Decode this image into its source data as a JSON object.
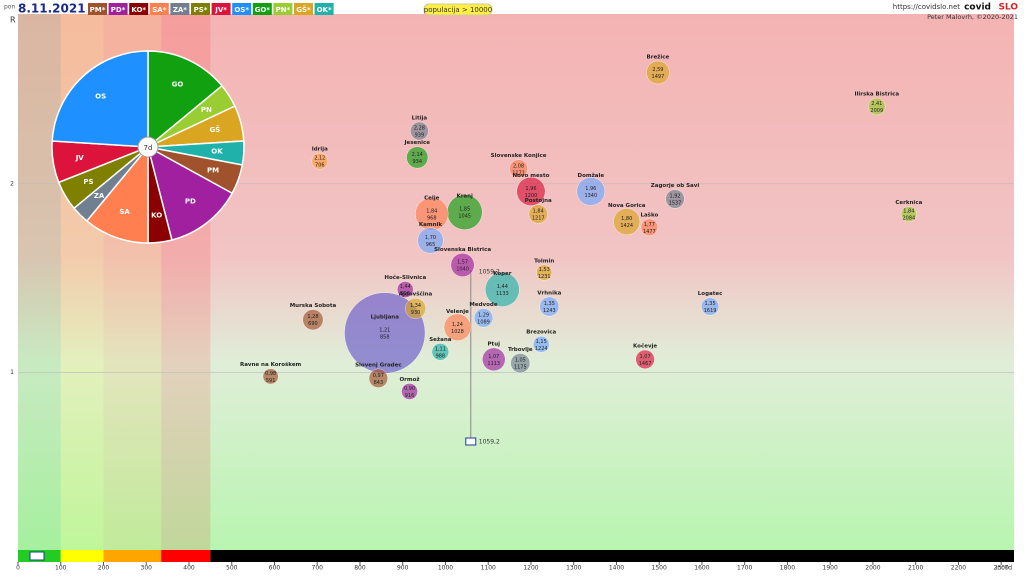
{
  "header": {
    "day": "pon",
    "date": "8.11.2021",
    "filter": "populacija > 10000",
    "url": "https://covidslo.net",
    "brand_a": "covid",
    "brand_b": "SLO",
    "credit": "Peter Malovrh, ©2020-2021",
    "parties": [
      {
        "label": "PM*",
        "color": "#a0522d"
      },
      {
        "label": "PD*",
        "color": "#a020a0"
      },
      {
        "label": "KO*",
        "color": "#8b0000"
      },
      {
        "label": "SA*",
        "color": "#ff7f50"
      },
      {
        "label": "ZA*",
        "color": "#708090"
      },
      {
        "label": "PS*",
        "color": "#808000"
      },
      {
        "label": "JV*",
        "color": "#dc143c"
      },
      {
        "label": "OS*",
        "color": "#1e90ff"
      },
      {
        "label": "GO*",
        "color": "#10a010"
      },
      {
        "label": "PN*",
        "color": "#9acd32"
      },
      {
        "label": "GŠ*",
        "color": "#daa520"
      },
      {
        "label": "OK*",
        "color": "#20b2aa"
      }
    ]
  },
  "chart_data": [
    {
      "type": "bubble",
      "y_label": "R",
      "x_label": "Inc7d",
      "xlim": [
        0,
        2330
      ],
      "ylim": [
        0.06,
        2.9
      ],
      "xticks": [
        0,
        100,
        200,
        300,
        400,
        500,
        600,
        700,
        800,
        900,
        1000,
        1100,
        1200,
        1300,
        1400,
        1500,
        1600,
        1700,
        1800,
        1900,
        2000,
        2100,
        2200,
        2300
      ],
      "yticks": [
        1,
        2
      ],
      "zones": [
        {
          "from": 0,
          "to": 100,
          "color": "#22cc22"
        },
        {
          "from": 100,
          "to": 200,
          "color": "#ffff00"
        },
        {
          "from": 200,
          "to": 335,
          "color": "#ffa500"
        },
        {
          "from": 335,
          "to": 450,
          "color": "#ff0000"
        },
        {
          "from": 450,
          "to": 2330,
          "color": "#000000"
        }
      ],
      "national": {
        "x": 1059.2,
        "label": "1059,2"
      },
      "labels": [
        "Ilirska Bistrica",
        "Brežice",
        "Cerknica",
        "Zagorje ob Savi",
        "Domžale",
        "Laško",
        "Nova Gorica",
        "Logatec",
        "Kočevje",
        "Litija",
        "Idrija",
        "Jesenice",
        "Slovenske Konjice",
        "Novo mesto",
        "Postojna",
        "Kranj",
        "Kamnik",
        "Celje",
        "Ljubljana",
        "Murska Sobota",
        "Ravne na Koroškem",
        "Slovenj Gradec",
        "Ormož",
        "Ptuj",
        "Trbovlje",
        "Brezovica",
        "Koper",
        "Medvode",
        "Velenje",
        "Ajdovščina",
        "Hoče-Slivnica",
        "Tolmin",
        "Slovenska Bistrica",
        "Sežana",
        "Vrhnika"
      ],
      "x": [
        2009,
        1497,
        2084,
        1537,
        1340,
        1477,
        1424,
        1619,
        1467,
        939,
        706,
        934,
        1171,
        1200,
        1217,
        1045,
        965,
        968,
        858,
        690,
        591,
        843,
        916,
        1113,
        1175,
        1224,
        1133,
        1089,
        1028,
        930,
        906,
        1231,
        1040,
        988,
        1243
      ],
      "values": [
        2.41,
        2.59,
        1.84,
        1.92,
        1.96,
        1.77,
        1.8,
        1.35,
        1.07,
        2.28,
        2.12,
        2.14,
        2.08,
        1.96,
        1.84,
        1.85,
        1.7,
        1.84,
        1.21,
        1.28,
        0.98,
        0.97,
        0.9,
        1.07,
        1.05,
        1.15,
        1.44,
        1.29,
        1.24,
        1.34,
        1.44,
        1.53,
        1.57,
        1.11,
        1.35
      ],
      "value_labels": [
        "2,41",
        "2,59",
        "1,84",
        "1,92",
        "1,96",
        "1,77",
        "1,80",
        "1,35",
        "1,07",
        "2,28",
        "2,12",
        "2,14",
        "2,08",
        "1,96",
        "1,84",
        "1,85",
        "1,70",
        "1,84",
        "1,21",
        "1,28",
        "0,98",
        "0,97",
        "0,90",
        "1,07",
        "1,05",
        "1,15",
        "1,44",
        "1,29",
        "1,24",
        "1,34",
        "1,44",
        "1,53",
        "1,57",
        "1,11",
        "1,35"
      ],
      "sizes": [
        13,
        24,
        11,
        16,
        36,
        13,
        32,
        14,
        16,
        15,
        12,
        21,
        15,
        37,
        16,
        56,
        30,
        49,
        295,
        19,
        11,
        16,
        12,
        24,
        17,
        12,
        53,
        16,
        33,
        19,
        12,
        11,
        25,
        13,
        17
      ],
      "colors": [
        "#9acd32",
        "#daa520",
        "#9acd32",
        "#708090",
        "#6fa8ff",
        "#ff7f50",
        "#daa520",
        "#6fa8ff",
        "#dc143c",
        "#708090",
        "#ffa040",
        "#10a010",
        "#ff7f50",
        "#dc143c",
        "#daa520",
        "#10a010",
        "#6fa8ff",
        "#ff7f50",
        "#6a5acd",
        "#a0522d",
        "#a0522d",
        "#a0522d",
        "#a020a0",
        "#a020a0",
        "#708090",
        "#6fa8ff",
        "#20b2aa",
        "#6fa8ff",
        "#ff7f50",
        "#daa520",
        "#a020a0",
        "#daa520",
        "#a020a0",
        "#20b2aa",
        "#6fa8ff"
      ]
    },
    {
      "type": "pie",
      "center_label": "7d",
      "categories": [
        "GO",
        "PN",
        "GŠ",
        "OK",
        "PM",
        "PD",
        "KO",
        "SA",
        "ZA",
        "PS",
        "JV",
        "OS"
      ],
      "values": [
        14,
        4,
        6,
        4,
        5,
        13,
        4,
        11,
        3,
        5,
        7,
        24
      ],
      "colors": [
        "#10a010",
        "#9acd32",
        "#daa520",
        "#20b2aa",
        "#a0522d",
        "#a020a0",
        "#8b0000",
        "#ff7f50",
        "#708090",
        "#808000",
        "#dc143c",
        "#1e90ff"
      ]
    }
  ]
}
